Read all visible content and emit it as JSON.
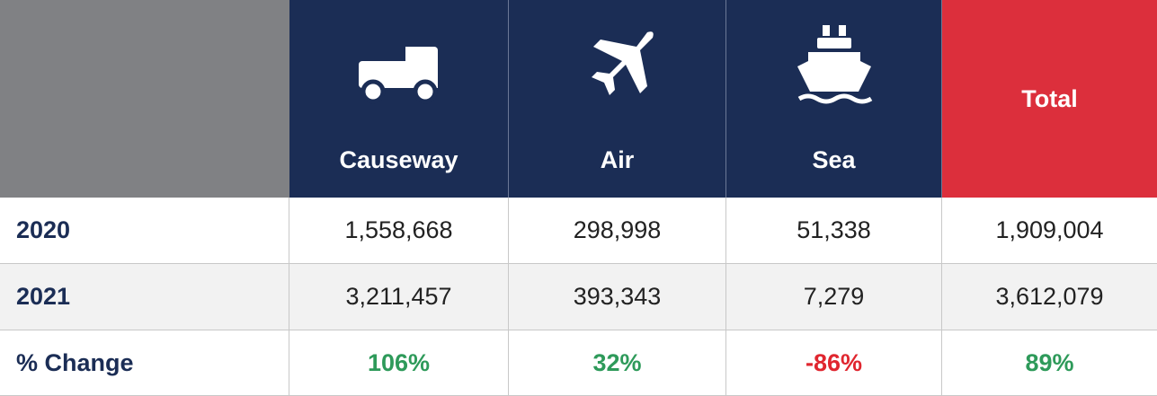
{
  "table": {
    "columns": [
      "Causeway",
      "Air",
      "Sea",
      "Total"
    ],
    "rows": [
      {
        "label": "2020",
        "values": [
          "1,558,668",
          "298,998",
          "51,338",
          "1,909,004"
        ]
      },
      {
        "label": "2021",
        "values": [
          "3,211,457",
          "393,343",
          "7,279",
          "3,612,079"
        ]
      },
      {
        "label": "% Change",
        "values": [
          "106%",
          "32%",
          "-86%",
          "89%"
        ]
      }
    ]
  }
}
